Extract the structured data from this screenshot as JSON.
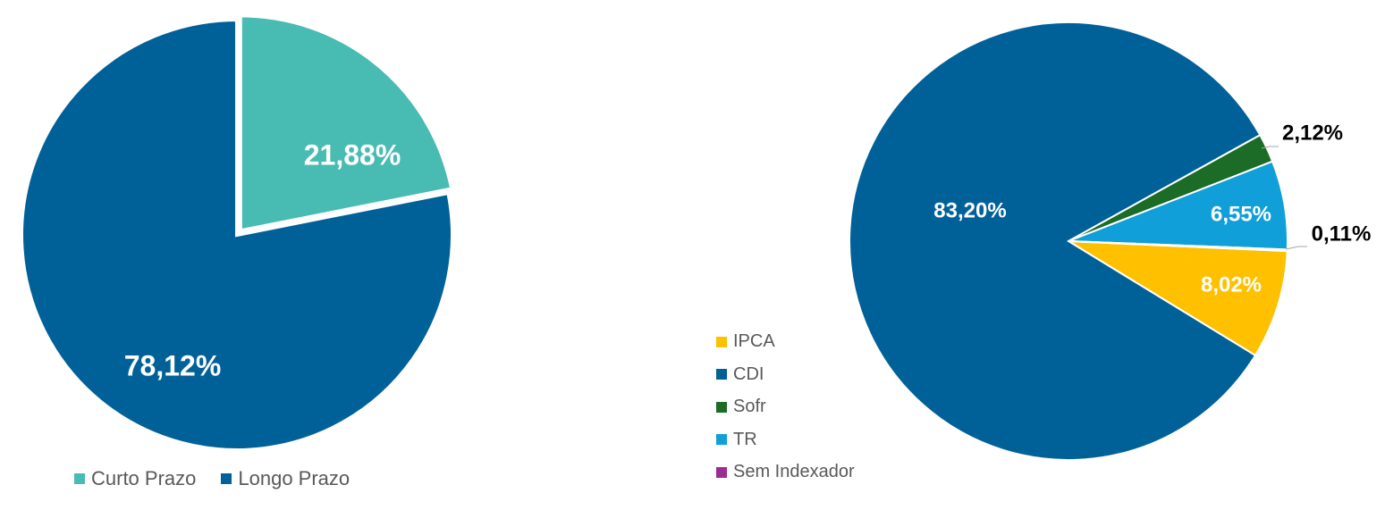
{
  "chart_data": [
    {
      "type": "pie",
      "title": "",
      "legend_position": "bottom",
      "labels": [
        "Curto Prazo",
        "Longo Prazo"
      ],
      "values": [
        21.88,
        78.12
      ],
      "value_labels": [
        "21,88%",
        "78,12%"
      ],
      "colors": [
        "#48BBB3",
        "#006199"
      ],
      "exploded": [
        "Curto Prazo"
      ]
    },
    {
      "type": "pie",
      "title": "",
      "legend_position": "left",
      "labels": [
        "IPCA",
        "CDI",
        "Sofr",
        "TR",
        "Sem Indexador"
      ],
      "values": [
        8.02,
        83.2,
        2.12,
        6.55,
        0.11
      ],
      "value_labels": [
        "8,02%",
        "83,20%",
        "2,12%",
        "6,55%",
        "0,11%"
      ],
      "colors": [
        "#FFC000",
        "#006199",
        "#1C6B27",
        "#109FD8",
        "#9B2C91"
      ]
    }
  ]
}
